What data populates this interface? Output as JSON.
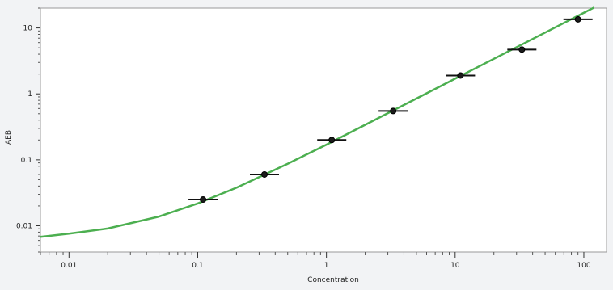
{
  "chart_data": {
    "type": "scatter",
    "xlabel": "Concentration",
    "ylabel": "AEB",
    "x_scale": "log",
    "y_scale": "log",
    "xlim": [
      0.006,
      150
    ],
    "ylim": [
      0.004,
      20
    ],
    "x_ticks": [
      0.01,
      0.1,
      1,
      10,
      100
    ],
    "x_tick_labels": [
      "0.01",
      "0.1",
      "1",
      "10",
      "100"
    ],
    "y_ticks": [
      0.01,
      0.1,
      1,
      10
    ],
    "y_tick_labels": [
      "0.01",
      "0.1",
      "1",
      "10"
    ],
    "grid": false,
    "series": [
      {
        "kind": "points",
        "color": "#1a1a1a",
        "x": [
          0.11,
          0.33,
          1.1,
          3.3,
          11,
          33,
          90
        ],
        "y": [
          0.025,
          0.06,
          0.2,
          0.55,
          1.9,
          4.7,
          13.5
        ]
      },
      {
        "kind": "fit-line",
        "color": "#4caf50",
        "x": [
          0.006,
          0.01,
          0.02,
          0.05,
          0.1,
          0.2,
          0.5,
          1,
          2,
          5,
          10,
          20,
          50,
          100,
          120
        ],
        "y": [
          0.0068,
          0.0076,
          0.0091,
          0.0138,
          0.0218,
          0.0378,
          0.087,
          0.17,
          0.34,
          0.85,
          1.7,
          3.4,
          8.5,
          17,
          20.4
        ]
      }
    ]
  }
}
